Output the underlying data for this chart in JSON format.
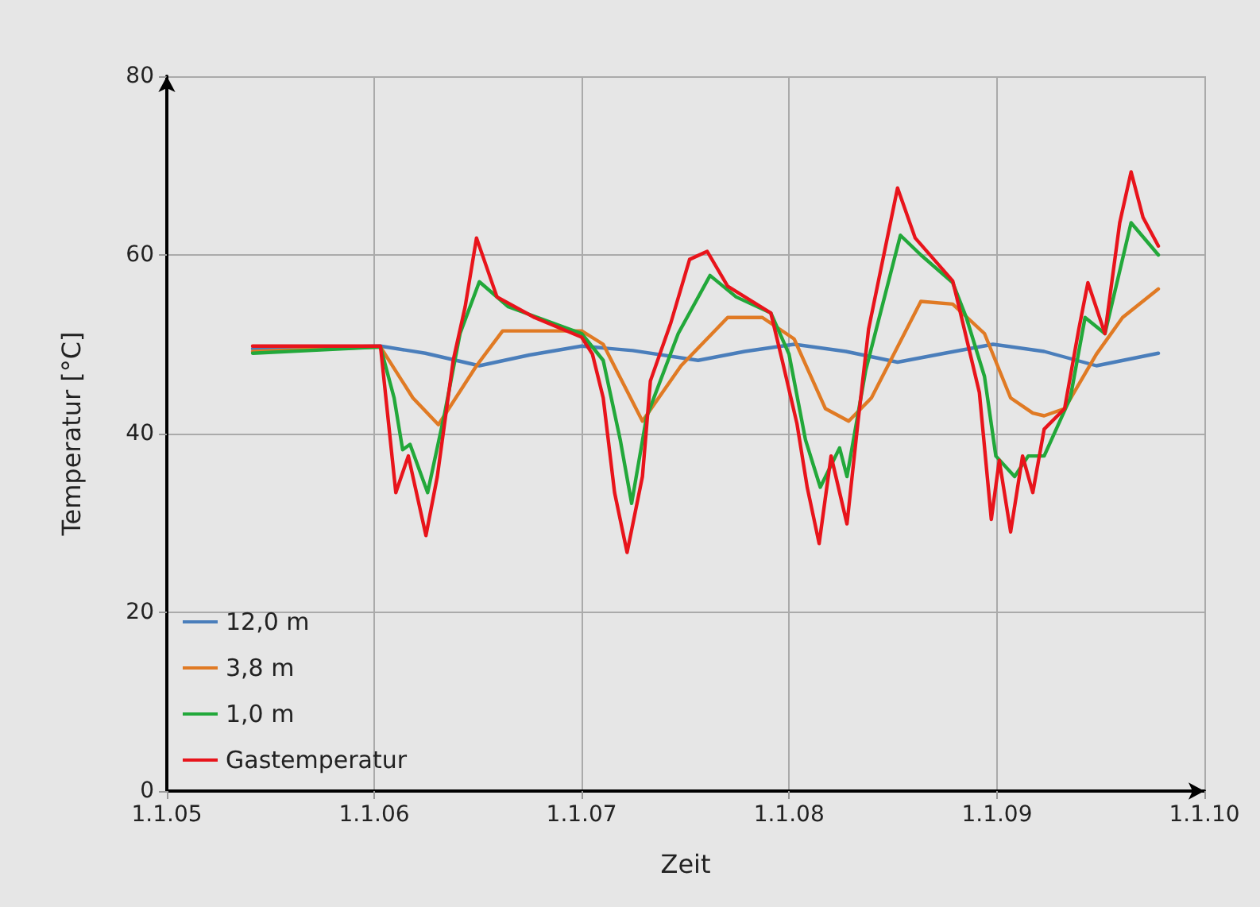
{
  "chart_data": {
    "type": "line",
    "xlabel": "Zeit",
    "ylabel": "Temperatur [°C]",
    "xlim": [
      "2005-01-01",
      "2010-01-01"
    ],
    "xticks": [
      {
        "value": "2005-01-01",
        "label": "1.1.05"
      },
      {
        "value": "2006-01-01",
        "label": "1.1.06"
      },
      {
        "value": "2007-01-01",
        "label": "1.1.07"
      },
      {
        "value": "2008-01-01",
        "label": "1.1.08"
      },
      {
        "value": "2009-01-01",
        "label": "1.1.09"
      },
      {
        "value": "2010-01-01",
        "label": "1.1.10"
      }
    ],
    "ylim": [
      0,
      80
    ],
    "yticks": [
      0,
      20,
      40,
      60,
      80
    ],
    "grid": true,
    "legend": "bottom left",
    "marker": "none",
    "line_style": "solid",
    "series": [
      {
        "name": "12,0 m",
        "color": "#4a7ebb",
        "x": [
          "2005-06-01",
          "2006-01-12",
          "2006-04-01",
          "2006-07-05",
          "2006-10-01",
          "2007-01-01",
          "2007-04-01",
          "2007-07-25",
          "2007-10-15",
          "2008-01-10",
          "2008-04-10",
          "2008-07-10",
          "2008-10-01",
          "2008-12-25",
          "2009-03-25",
          "2009-06-25",
          "2009-10-12"
        ],
        "values": [
          49.5,
          49.8,
          49,
          47.6,
          48.8,
          49.8,
          49.3,
          48.2,
          49.2,
          50,
          49.2,
          48,
          49,
          50,
          49.2,
          47.6,
          49
        ]
      },
      {
        "name": "3,8 m",
        "color": "#e07a24",
        "x": [
          "2005-06-01",
          "2006-01-12",
          "2006-03-10",
          "2006-04-24",
          "2006-06-30",
          "2006-08-15",
          "2007-01-01",
          "2007-02-08",
          "2007-04-18",
          "2007-06-25",
          "2007-09-15",
          "2007-11-15",
          "2008-01-10",
          "2008-03-05",
          "2008-04-15",
          "2008-05-25",
          "2008-08-20",
          "2008-10-15",
          "2008-12-10",
          "2009-01-25",
          "2009-03-05",
          "2009-03-25",
          "2009-04-30",
          "2009-06-25",
          "2009-08-10",
          "2009-10-12"
        ],
        "values": [
          49.2,
          49.7,
          44,
          41,
          47.6,
          51.5,
          51.5,
          50,
          41.4,
          47.6,
          53,
          53,
          50.6,
          42.8,
          41.4,
          44,
          54.8,
          54.5,
          51.2,
          44,
          42.3,
          42,
          42.8,
          48.9,
          53,
          56.2
        ]
      },
      {
        "name": "1,0 m",
        "color": "#22a83a",
        "x": [
          "2005-06-01",
          "2006-01-12",
          "2006-02-05",
          "2006-02-20",
          "2006-03-05",
          "2006-04-05",
          "2006-05-05",
          "2006-06-01",
          "2006-07-05",
          "2006-08-25",
          "2007-01-01",
          "2007-02-08",
          "2007-03-10",
          "2007-03-30",
          "2007-04-25",
          "2007-06-20",
          "2007-08-15",
          "2007-09-30",
          "2007-11-30",
          "2008-01-01",
          "2008-01-30",
          "2008-02-25",
          "2008-03-30",
          "2008-04-12",
          "2008-05-15",
          "2008-07-15",
          "2008-08-20",
          "2008-10-15",
          "2008-11-08",
          "2008-12-10",
          "2008-12-30",
          "2009-02-01",
          "2009-02-25",
          "2009-03-25",
          "2009-05-10",
          "2009-06-05",
          "2009-07-10",
          "2009-08-25",
          "2009-10-12"
        ],
        "values": [
          49,
          49.7,
          44,
          38.2,
          38.8,
          33.4,
          42.3,
          51.2,
          57,
          54.2,
          51.2,
          48.2,
          39.3,
          32.2,
          41.8,
          51.2,
          57.7,
          55.3,
          53.5,
          48.9,
          39.3,
          34,
          38.4,
          35.2,
          47.1,
          62.2,
          60,
          56.9,
          53,
          46.4,
          37.5,
          35.2,
          37.5,
          37.5,
          44,
          53,
          51.2,
          63.6,
          60
        ]
      },
      {
        "name": "Gastemperatur",
        "color": "#e8141b",
        "x": [
          "2005-06-01",
          "2006-01-12",
          "2006-02-08",
          "2006-03-02",
          "2006-04-02",
          "2006-04-22",
          "2006-05-20",
          "2006-06-10",
          "2006-06-30",
          "2006-08-05",
          "2006-10-10",
          "2007-01-01",
          "2007-01-20",
          "2007-02-08",
          "2007-02-28",
          "2007-03-22",
          "2007-04-18",
          "2007-05-02",
          "2007-06-07",
          "2007-07-10",
          "2007-08-10",
          "2007-09-15",
          "2007-11-30",
          "2007-12-20",
          "2008-01-15",
          "2008-02-02",
          "2008-02-23",
          "2008-03-15",
          "2008-04-12",
          "2008-05-01",
          "2008-05-20",
          "2008-07-10",
          "2008-08-10",
          "2008-10-15",
          "2008-10-22",
          "2008-12-01",
          "2008-12-22",
          "2009-01-05",
          "2009-01-25",
          "2009-02-15",
          "2009-03-05",
          "2009-03-25",
          "2009-04-30",
          "2009-05-25",
          "2009-06-10",
          "2009-07-10",
          "2009-08-05",
          "2009-08-25",
          "2009-09-15",
          "2009-10-12"
        ],
        "values": [
          49.8,
          49.8,
          33.4,
          37.5,
          28.6,
          35.2,
          48.2,
          54.2,
          61.9,
          55.3,
          53,
          50.8,
          48.9,
          44,
          33.4,
          26.7,
          35.2,
          45.9,
          52.4,
          59.5,
          60.4,
          56.5,
          53.5,
          48.2,
          41.1,
          34,
          27.7,
          37.5,
          29.9,
          41.1,
          51.7,
          67.5,
          61.9,
          57.1,
          55.3,
          44.6,
          30.4,
          37,
          29,
          37.5,
          33.4,
          40.5,
          42.8,
          51.7,
          56.9,
          51.2,
          63.6,
          69.3,
          64.2,
          61
        ]
      }
    ]
  }
}
